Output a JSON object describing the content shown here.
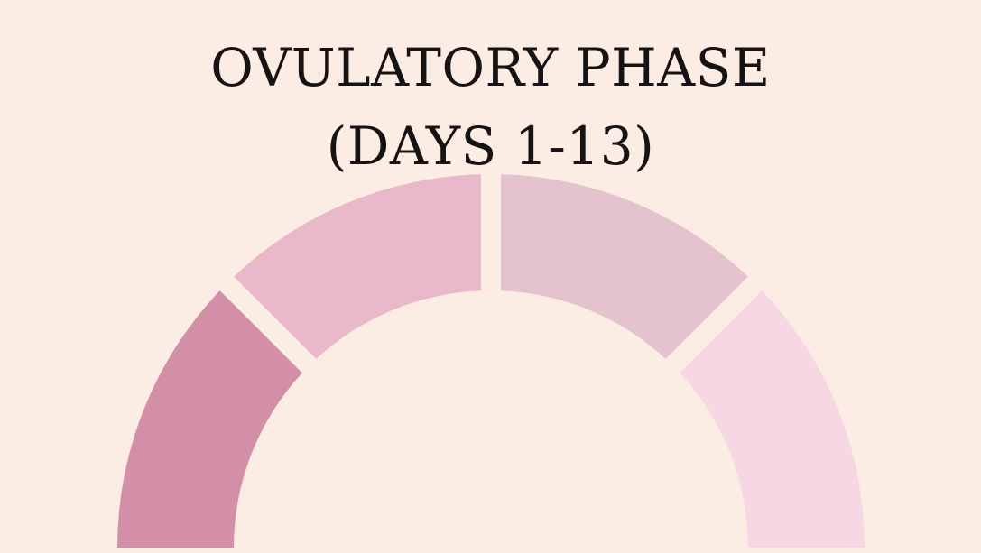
{
  "title": {
    "line1": "OVULATORY PHASE",
    "line2": "(DAYS 1-13)"
  },
  "dial": {
    "segments": [
      {
        "name": "dial-segment-1",
        "color": "#d48fa8"
      },
      {
        "name": "dial-segment-2",
        "color": "#e9b8ca"
      },
      {
        "name": "dial-segment-3",
        "color": "#e4c3cf"
      },
      {
        "name": "dial-segment-4",
        "color": "#f6d7e3"
      }
    ]
  }
}
